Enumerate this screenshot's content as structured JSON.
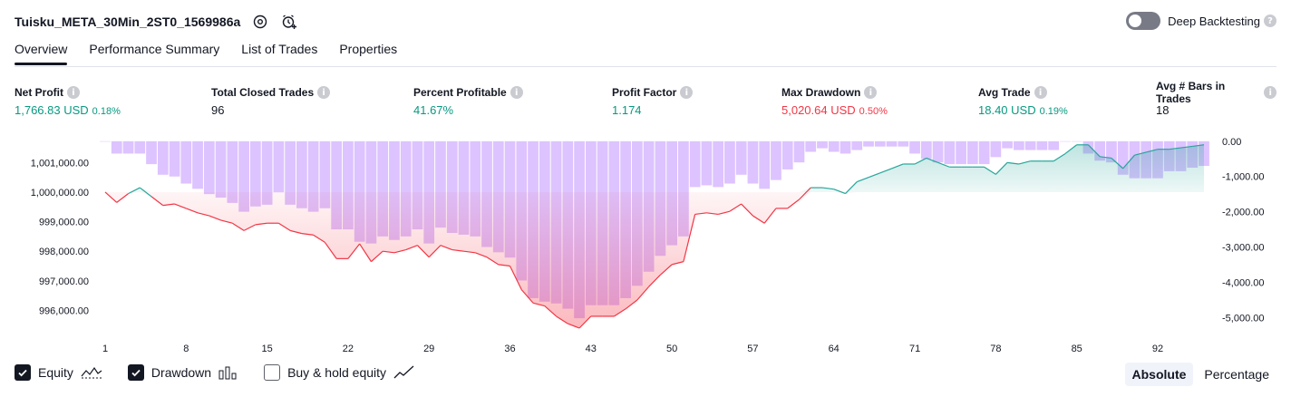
{
  "header": {
    "title": "Tuisku_META_30Min_2ST0_1569986a",
    "deep_backtesting_label": "Deep Backtesting",
    "info_glyph": "?"
  },
  "tabs": [
    {
      "label": "Overview",
      "active": true
    },
    {
      "label": "Performance Summary",
      "active": false
    },
    {
      "label": "List of Trades",
      "active": false
    },
    {
      "label": "Properties",
      "active": false
    }
  ],
  "metrics": {
    "info_glyph": "i",
    "net_profit": {
      "label": "Net Profit",
      "value": "1,766.83 USD",
      "sub": "0.18%"
    },
    "total_closed_trades": {
      "label": "Total Closed Trades",
      "value": "96"
    },
    "percent_profitable": {
      "label": "Percent Profitable",
      "value": "41.67%"
    },
    "profit_factor": {
      "label": "Profit Factor",
      "value": "1.174"
    },
    "max_drawdown": {
      "label": "Max Drawdown",
      "value": "5,020.64 USD",
      "sub": "0.50%"
    },
    "avg_trade": {
      "label": "Avg Trade",
      "value": "18.40 USD",
      "sub": "0.19%"
    },
    "avg_bars": {
      "label": "Avg # Bars in Trades",
      "value": "18"
    }
  },
  "legend": {
    "equity": {
      "label": "Equity",
      "checked": true,
      "icon": "equity-line-icon"
    },
    "drawdown": {
      "label": "Drawdown",
      "checked": true,
      "icon": "drawdown-bars-icon"
    },
    "buy_hold": {
      "label": "Buy & hold equity",
      "checked": false,
      "icon": "buy-hold-line-icon"
    }
  },
  "modes": {
    "absolute": "Absolute",
    "percentage": "Percentage",
    "selected": "Absolute"
  },
  "colors": {
    "positive": "#089981",
    "negative": "#f23645",
    "drawdown_bar": "#d7b9ff",
    "equity_line_pos": "#26a69a",
    "equity_line_neg": "#f23645"
  },
  "chart_data": {
    "type": "line",
    "x": [
      1,
      2,
      3,
      4,
      5,
      6,
      7,
      8,
      9,
      10,
      11,
      12,
      13,
      14,
      15,
      16,
      17,
      18,
      19,
      20,
      21,
      22,
      23,
      24,
      25,
      26,
      27,
      28,
      29,
      30,
      31,
      32,
      33,
      34,
      35,
      36,
      37,
      38,
      39,
      40,
      41,
      42,
      43,
      44,
      45,
      46,
      47,
      48,
      49,
      50,
      51,
      52,
      53,
      54,
      55,
      56,
      57,
      58,
      59,
      60,
      61,
      62,
      63,
      64,
      65,
      66,
      67,
      68,
      69,
      70,
      71,
      72,
      73,
      74,
      75,
      76,
      77,
      78,
      79,
      80,
      81,
      82,
      83,
      84,
      85,
      86,
      87,
      88,
      89,
      90,
      91,
      92,
      93,
      94,
      95,
      96
    ],
    "x_ticks": [
      "1",
      "8",
      "15",
      "22",
      "29",
      "36",
      "43",
      "50",
      "57",
      "64",
      "71",
      "78",
      "85",
      "92"
    ],
    "y_left_ticks": [
      "1,001,000.00",
      "1,000,000.00",
      "999,000.00",
      "998,000.00",
      "997,000.00",
      "996,000.00"
    ],
    "y_right_ticks": [
      "0.00",
      "-1,000.00",
      "-2,000.00",
      "-3,000.00",
      "-4,000.00",
      "-5,000.00"
    ],
    "ylim_left": [
      995400,
      1001900
    ],
    "ylim_right": [
      -5300,
      150
    ],
    "series": [
      {
        "name": "Equity",
        "values": [
          1000000,
          999650,
          999950,
          1000150,
          999850,
          999550,
          999600,
          999450,
          999300,
          999200,
          999050,
          998950,
          998700,
          998900,
          998950,
          998950,
          998700,
          998600,
          998550,
          998300,
          997750,
          997750,
          998250,
          997650,
          998000,
          997950,
          998050,
          998200,
          997800,
          998200,
          998050,
          998000,
          997950,
          997800,
          997550,
          997500,
          996700,
          996250,
          996150,
          995800,
          995550,
          995400,
          995800,
          995800,
          995800,
          996050,
          996350,
          996800,
          997200,
          997550,
          997650,
          999250,
          999300,
          999250,
          999350,
          999600,
          999200,
          998950,
          999450,
          999450,
          999750,
          1000150,
          1000150,
          1000100,
          999950,
          1000350,
          1000500,
          1000650,
          1000800,
          1000950,
          1000950,
          1001150,
          1001000,
          1000850,
          1000850,
          1000850,
          1000850,
          1000600,
          1001000,
          1000950,
          1001050,
          1001050,
          1001050,
          1001300,
          1001600,
          1001600,
          1001200,
          1001150,
          1000800,
          1001250,
          1001350,
          1001450,
          1001450,
          1001500,
          1001550,
          1001600
        ]
      },
      {
        "name": "Drawdown",
        "values": [
          0,
          -350,
          -350,
          -350,
          -650,
          -950,
          -1000,
          -1200,
          -1350,
          -1500,
          -1600,
          -1750,
          -2000,
          -1850,
          -1800,
          -1450,
          -1800,
          -1900,
          -2000,
          -1900,
          -2500,
          -2500,
          -2850,
          -2900,
          -2700,
          -2800,
          -2700,
          -2500,
          -2900,
          -2450,
          -2600,
          -2650,
          -2700,
          -3000,
          -3150,
          -3300,
          -3950,
          -4450,
          -4550,
          -4600,
          -4750,
          -5020,
          -4650,
          -4650,
          -4650,
          -4450,
          -4100,
          -3700,
          -3250,
          -2950,
          -2700,
          -1300,
          -1250,
          -1300,
          -1200,
          -950,
          -1200,
          -1350,
          -1100,
          -800,
          -600,
          -300,
          -200,
          -300,
          -350,
          -250,
          -150,
          -150,
          -150,
          -150,
          -350,
          -500,
          -600,
          -650,
          -650,
          -650,
          -650,
          -450,
          -200,
          -250,
          -250,
          -250,
          -250,
          0,
          0,
          -350,
          -550,
          -600,
          -950,
          -1050,
          -1050,
          -1050,
          -850,
          -850,
          -750,
          -700
        ]
      }
    ],
    "grid": false
  }
}
